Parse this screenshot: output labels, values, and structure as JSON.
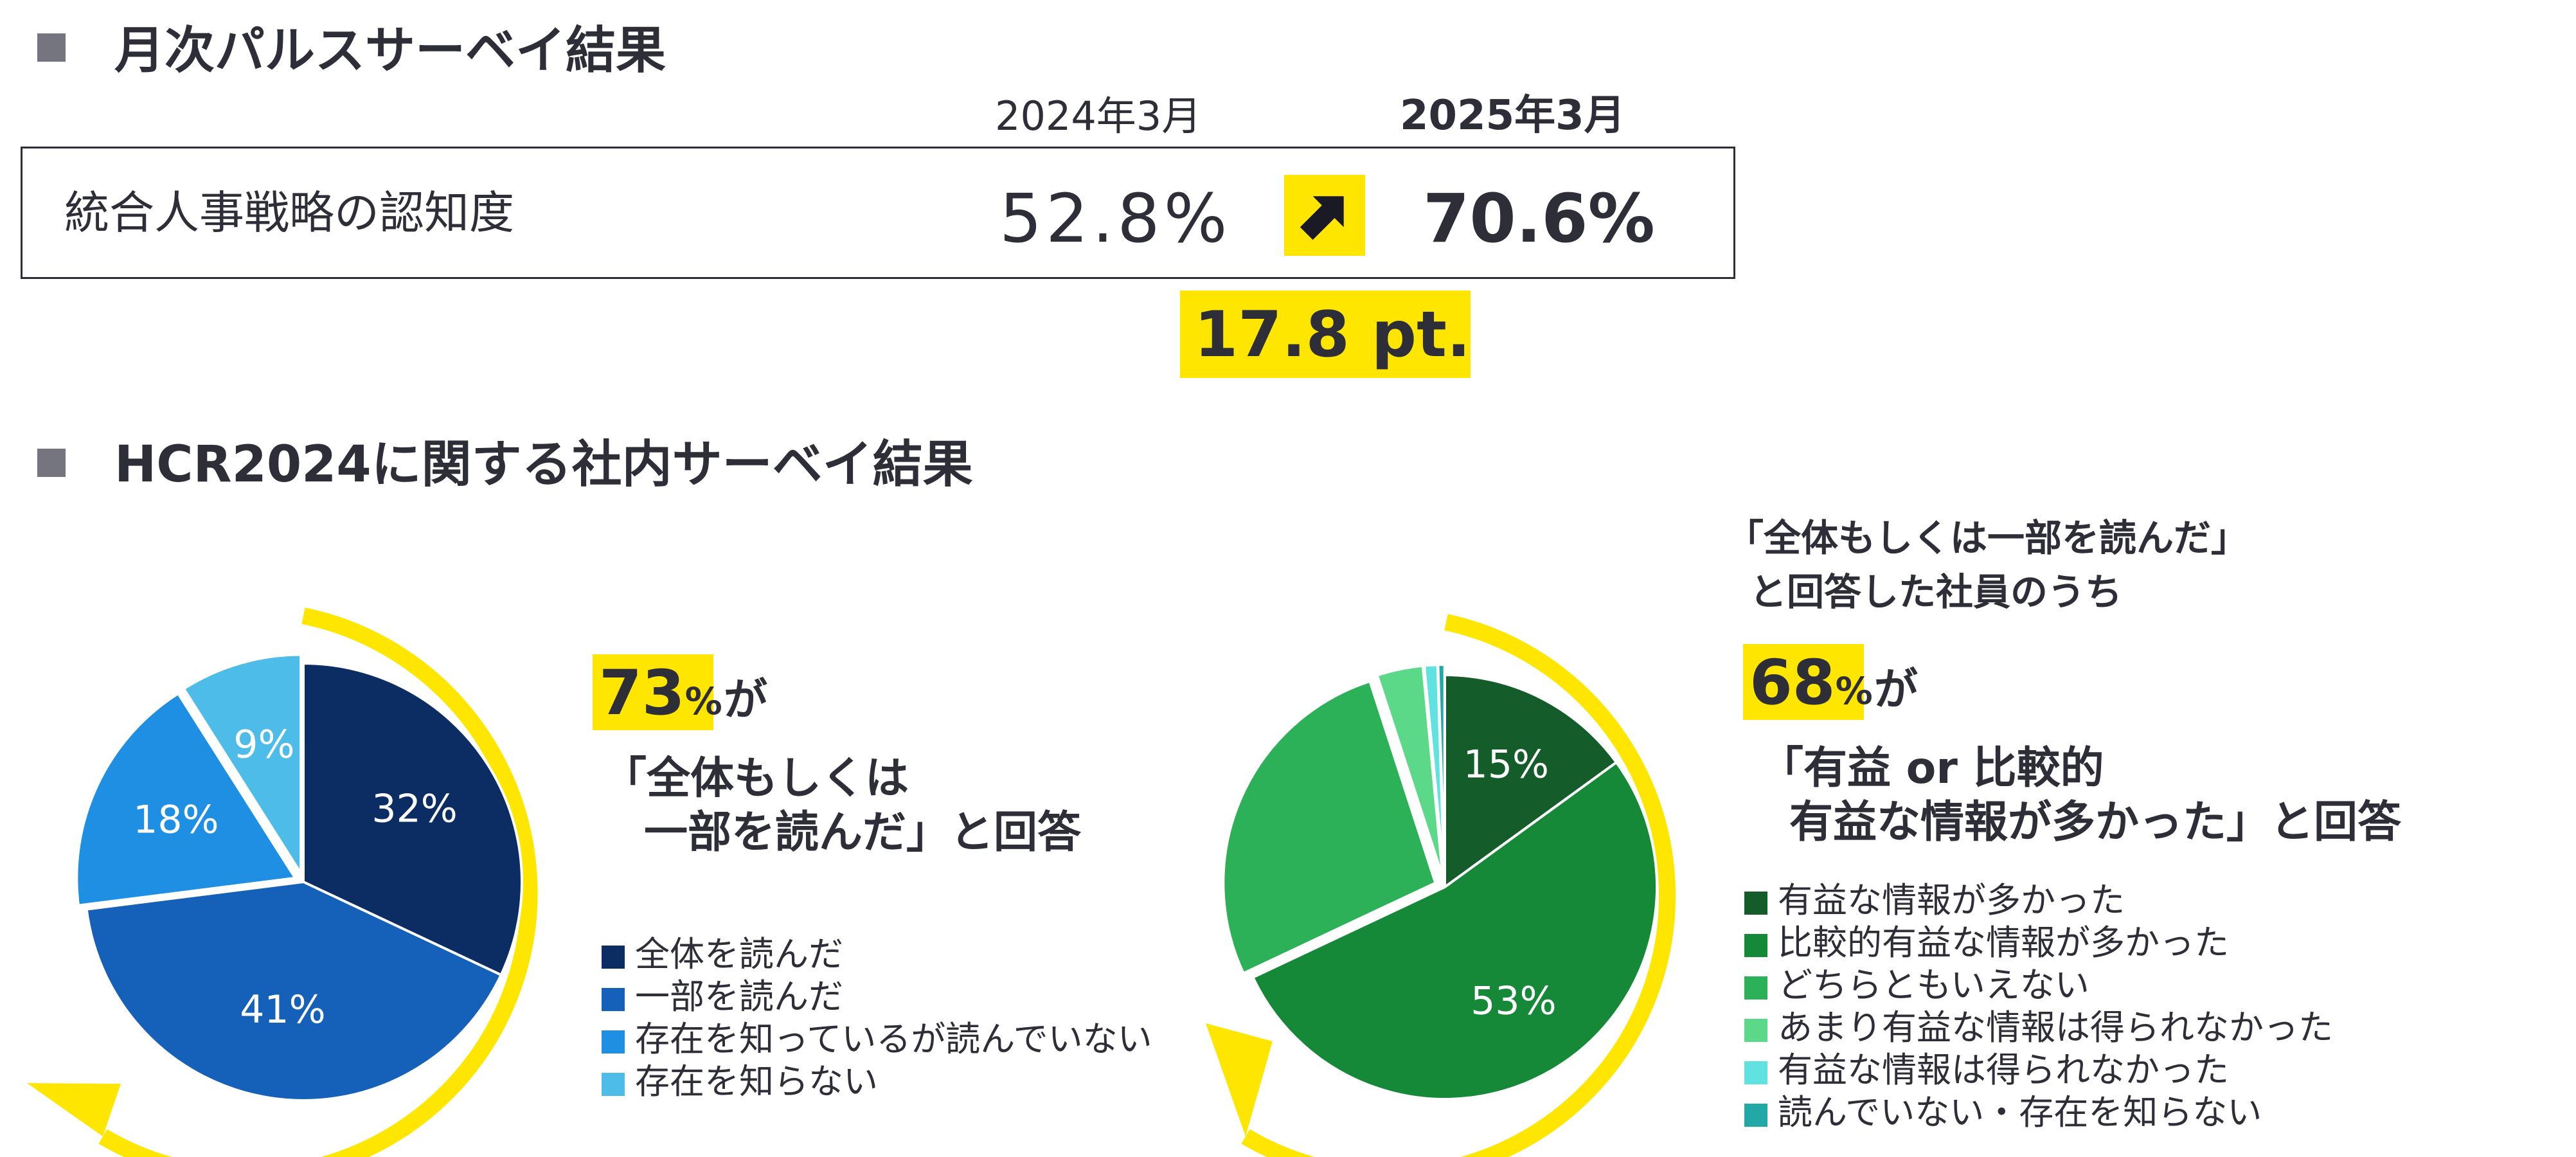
{
  "section1": {
    "title": "月次パルスサーベイ結果",
    "col_2024": "2024年3月",
    "col_2025": "2025年3月",
    "row_label": "統合人事戦略の認知度",
    "value_2024": "52.8%",
    "value_2025": "70.6%",
    "diff": "17.8 pt.",
    "arrow_icon": "arrow-up-right-icon"
  },
  "section2": {
    "title": "HCR2024に関する社内サーベイ結果"
  },
  "left_callout": {
    "big": "73",
    "pct": "%",
    "ga": "が",
    "line2": "「全体もしくは",
    "line3": "一部を読んだ」と回答"
  },
  "right_callout": {
    "pre1": "「全体もしくは一部を読んだ」",
    "pre2": "と回答した社員のうち",
    "big": "68",
    "pct": "%",
    "ga": "が",
    "line2": "「有益 or 比較的",
    "line3": "有益な情報が多かった」と回答"
  },
  "colors": {
    "accent_yellow": "#ffe600",
    "text_dark": "#2e2e38",
    "section_square": "#75757f"
  },
  "chart_data": [
    {
      "type": "pie",
      "categories": [
        "全体を読んだ",
        "一部を読んだ",
        "存在を知っているが読んでいない",
        "存在を知らない"
      ],
      "values": [
        32,
        41,
        18,
        9
      ],
      "labels": [
        "32%",
        "41%",
        "18%",
        "9%"
      ],
      "colors": [
        "#0b2d63",
        "#1560b8",
        "#1e8fe3",
        "#4ebce9"
      ],
      "exploded_slices": [
        2,
        3
      ],
      "legend": "right"
    },
    {
      "type": "pie",
      "categories": [
        "有益な情報が多かった",
        "比較的有益な情報が多かった",
        "どちらともいえない",
        "あまり有益な情報は得られなかった",
        "有益な情報は得られなかった",
        "読んでいない・存在を知らない"
      ],
      "values": [
        15,
        53,
        27,
        3.5,
        1,
        0.5
      ],
      "labels": [
        "15%",
        "53%",
        "",
        "",
        "",
        ""
      ],
      "colors": [
        "#145c2a",
        "#168938",
        "#2db158",
        "#5cd889",
        "#60e2e0",
        "#23a8a8"
      ],
      "exploded_slices": [
        2,
        3,
        4,
        5
      ],
      "legend": "right"
    }
  ]
}
